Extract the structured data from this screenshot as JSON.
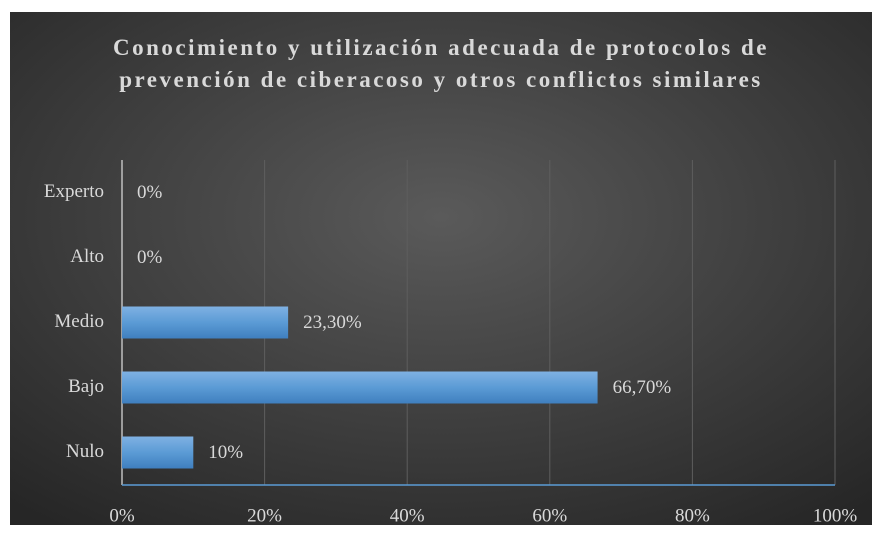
{
  "chart_data": {
    "type": "hbar",
    "title": "Conocimiento y utilización adecuada de protocolos de prevención de ciberacoso y otros conflictos similares",
    "categories": [
      "Experto",
      "Alto",
      "Medio",
      "Bajo",
      "Nulo"
    ],
    "values": [
      0,
      0,
      23.3,
      66.7,
      10
    ],
    "value_labels": [
      "0%",
      "0%",
      "23,30%",
      "66,70%",
      "10%"
    ],
    "color": "#5b9bd5",
    "xlim": [
      0,
      100
    ],
    "xticks": [
      {
        "value": 0,
        "label": "0%"
      },
      {
        "value": 20,
        "label": "20%"
      },
      {
        "value": 40,
        "label": "40%"
      },
      {
        "value": 60,
        "label": "60%"
      },
      {
        "value": 80,
        "label": "80%"
      },
      {
        "value": 100,
        "label": "100%"
      }
    ],
    "grid": true
  }
}
